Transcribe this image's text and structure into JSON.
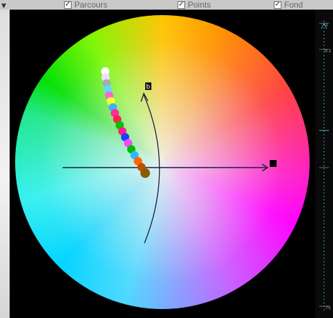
{
  "toolbar": {
    "options": [
      {
        "label": "Parcours",
        "checked": true
      },
      {
        "label": "Points",
        "checked": true
      },
      {
        "label": "Fond",
        "checked": true
      }
    ]
  },
  "diagram": {
    "arc_label": "b",
    "points_colors": [
      "#ffffff",
      "#f0e0ff",
      "#aaaaaa",
      "#55ddff",
      "#ff66cc",
      "#ffff33",
      "#3fb0ff",
      "#ff2d9a",
      "#ff2050",
      "#00c000",
      "#ff1e8a",
      "#1a40ff",
      "#ff44ff",
      "#00bb00",
      "#2db8ff",
      "#ff6600",
      "#c05000",
      "#8a5a00"
    ],
    "right_scale": {
      "top_label": "1",
      "second_label": "0.1",
      "bottom_label": "75"
    }
  },
  "colors": {
    "background": "#000000",
    "axis": "#1a1a3a",
    "end_marker": "#000000"
  },
  "icons": {
    "collapse": "triangle-down-icon",
    "checkbox": "check-icon"
  }
}
